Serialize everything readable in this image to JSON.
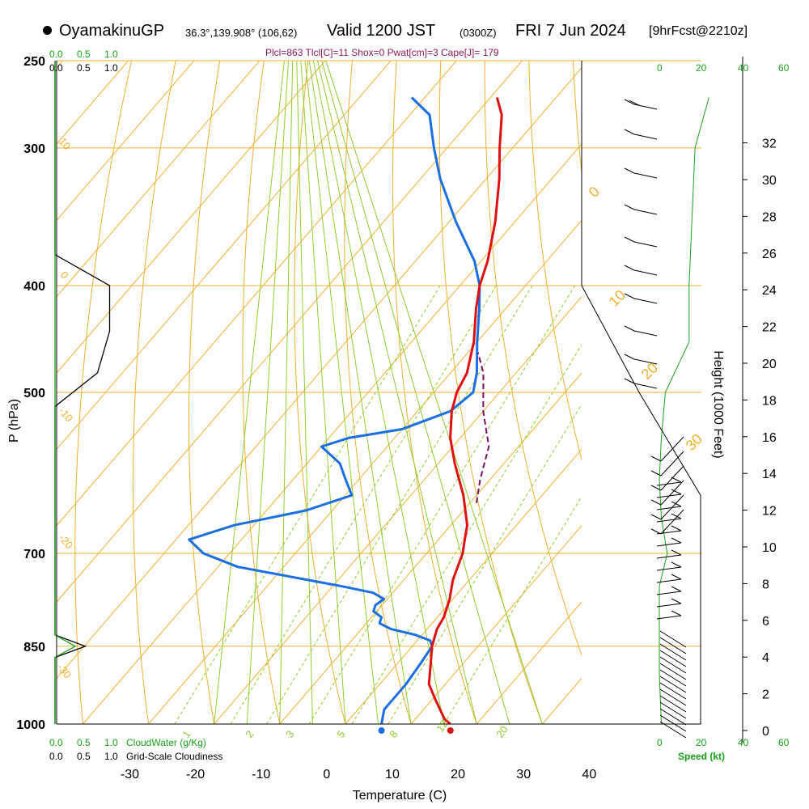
{
  "header": {
    "station": "OyamakinuGP",
    "coords": "36.3°,139.908° (106,62)",
    "valid_main": "Valid 1200 JST",
    "valid_utc": "(0300Z)",
    "date": "FRI 7 Jun 2024",
    "forecast": "[9hrFcst@2210z]",
    "params": "Plcl=863 Tlcl[C]=11 Shox=0 Pwat[cm]=3 Cape[J]= 179"
  },
  "top_scales": {
    "cloud_water_green": [
      "0.0",
      "0.5",
      "1.0"
    ],
    "cloudiness_black": [
      "0.0",
      "0.5",
      "1.0"
    ],
    "speed_green": [
      "0",
      "20",
      "40",
      "60"
    ]
  },
  "bottom_scales": {
    "cloud_water_green": [
      "0.0",
      "0.5",
      "1.0"
    ],
    "cloud_water_label": "CloudWater (g/Kg)",
    "cloudiness_black": [
      "0.0",
      "0.5",
      "1.0"
    ],
    "cloudiness_label": "Grid-Scale Cloudiness",
    "speed_green": [
      "0",
      "20",
      "40",
      "60"
    ],
    "speed_label": "Speed (kt)"
  },
  "colors": {
    "isotherm": "#f0b030",
    "dry_adiabat": "#f0b030",
    "moist_adiabat": "#90cc30",
    "mixing_ratio": "#90cc30",
    "temperature": "#e01010",
    "dewpoint": "#1a6ee6",
    "parcel": "#7a1060",
    "speed": "#1aa01a",
    "params": "#8b1a5a"
  },
  "chart_data": {
    "type": "skew-t",
    "xlabel": "Temperature (C)",
    "ylabel": "P (hPa)",
    "y2label": "Height (1000 Feet)",
    "xticks": [
      -30,
      -20,
      -10,
      0,
      10,
      20,
      30,
      40
    ],
    "pressure_ticks": [
      250,
      300,
      400,
      500,
      700,
      850,
      1000
    ],
    "height_ticks": [
      0,
      2,
      4,
      6,
      8,
      10,
      12,
      14,
      16,
      18,
      20,
      22,
      24,
      26,
      28,
      30,
      32
    ],
    "xlim": [
      -34,
      46
    ],
    "plim": [
      1000,
      250
    ],
    "isotherm_labels": [
      0,
      10,
      20,
      30
    ],
    "dry_adiabat_labels": [
      10,
      0,
      -10,
      -20,
      -30
    ],
    "mixing_ratio_labels": [
      1,
      2,
      3,
      5,
      8,
      12,
      20
    ],
    "temperature": {
      "name": "Temperature",
      "pressure": [
        1000,
        990,
        970,
        950,
        920,
        880,
        850,
        830,
        820,
        800,
        770,
        740,
        700,
        680,
        660,
        620,
        580,
        550,
        520,
        500,
        480,
        450,
        420,
        400,
        380,
        350,
        320,
        300,
        280,
        270
      ],
      "values": [
        26.0,
        24.5,
        22.5,
        20.5,
        17.5,
        15.0,
        13.0,
        12.0,
        11.5,
        11.0,
        9.5,
        7.5,
        5.5,
        4.0,
        2.5,
        -2.0,
        -7.5,
        -11.5,
        -14.8,
        -16.5,
        -17.5,
        -20.5,
        -24.5,
        -27.0,
        -29.0,
        -33.0,
        -38.0,
        -42.0,
        -46.0,
        -49.0
      ]
    },
    "dewpoint": {
      "name": "Dewpoint",
      "pressure": [
        1000,
        990,
        970,
        950,
        920,
        880,
        850,
        840,
        830,
        820,
        810,
        800,
        790,
        780,
        770,
        760,
        750,
        720,
        700,
        680,
        660,
        640,
        620,
        600,
        580,
        560,
        550,
        540,
        520,
        500,
        480,
        450,
        420,
        400,
        380,
        350,
        320,
        300,
        280,
        270
      ],
      "values": [
        15.5,
        15.0,
        14.0,
        14.0,
        14.0,
        13.5,
        13.0,
        12.0,
        9.0,
        4.5,
        2.0,
        1.5,
        -0.5,
        -1.0,
        -0.5,
        -3.0,
        -8.5,
        -27.0,
        -34.0,
        -38.0,
        -33.0,
        -24.0,
        -19.0,
        -22.0,
        -25.0,
        -30.0,
        -27.0,
        -20.0,
        -15.0,
        -14.0,
        -16.0,
        -20.0,
        -24.0,
        -27.0,
        -31.0,
        -39.0,
        -47.0,
        -52.0,
        -57.0,
        -62.0
      ]
    },
    "parcel": {
      "name": "Parcel",
      "pressure": [
        630,
        600,
        560,
        520,
        480,
        460
      ],
      "values": [
        1.0,
        -1.5,
        -4.5,
        -10.0,
        -15.0,
        -18.5
      ]
    },
    "cloudiness": {
      "pressure": [
        250,
        350,
        375,
        400,
        440,
        480,
        515,
        800,
        830,
        850,
        870,
        900,
        1000
      ],
      "values": [
        0.0,
        0.0,
        0.0,
        0.45,
        0.45,
        0.35,
        0.0,
        0.0,
        0.0,
        0.25,
        0.0,
        0.0,
        0.0
      ]
    },
    "cloud_water": {
      "pressure": [
        250,
        800,
        830,
        850,
        870,
        1000
      ],
      "values": [
        0.0,
        0.0,
        0.0,
        0.25,
        0.0,
        0.0
      ]
    },
    "wind_speed": {
      "pressure": [
        270,
        300,
        400,
        450,
        500,
        550,
        600,
        650,
        700,
        750,
        800,
        850,
        900,
        1000
      ],
      "values": [
        25,
        18,
        15,
        15,
        3,
        1,
        0,
        1,
        4,
        0,
        0,
        0,
        0,
        1
      ]
    }
  }
}
